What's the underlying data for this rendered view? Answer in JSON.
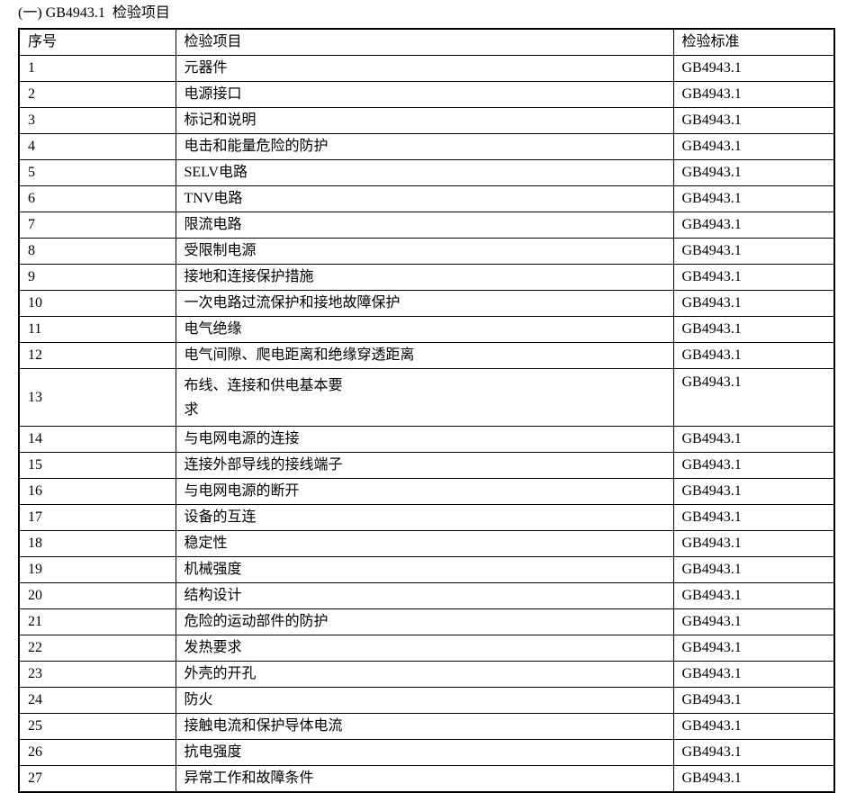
{
  "title": "(一) GB4943.1  检验项目",
  "table": {
    "headers": [
      "序号",
      "检验项目",
      "检验标准"
    ],
    "rows": [
      {
        "no": "1",
        "item": "元器件",
        "std": "GB4943.1"
      },
      {
        "no": "2",
        "item": "电源接口",
        "std": "GB4943.1"
      },
      {
        "no": "3",
        "item": "标记和说明",
        "std": "GB4943.1"
      },
      {
        "no": "4",
        "item": "电击和能量危险的防护",
        "std": "GB4943.1"
      },
      {
        "no": "5",
        "item": "SELV电路",
        "std": "GB4943.1"
      },
      {
        "no": "6",
        "item": "TNV电路",
        "std": "GB4943.1"
      },
      {
        "no": "7",
        "item": "限流电路",
        "std": "GB4943.1"
      },
      {
        "no": "8",
        "item": "受限制电源",
        "std": "GB4943.1"
      },
      {
        "no": "9",
        "item": "接地和连接保护措施",
        "std": "GB4943.1"
      },
      {
        "no": "10",
        "item": "一次电路过流保护和接地故障保护",
        "std": "GB4943.1"
      },
      {
        "no": "11",
        "item": "电气绝缘",
        "std": "GB4943.1"
      },
      {
        "no": "12",
        "item": "电气间隙、爬电距离和绝缘穿透距离",
        "std": "GB4943.1"
      },
      {
        "no": "13",
        "item": "布线、连接和供电基本要\n求",
        "std": "GB4943.1"
      },
      {
        "no": "14",
        "item": "与电网电源的连接",
        "std": "GB4943.1"
      },
      {
        "no": "15",
        "item": "连接外部导线的接线端子",
        "std": "GB4943.1"
      },
      {
        "no": "16",
        "item": "与电网电源的断开",
        "std": "GB4943.1"
      },
      {
        "no": "17",
        "item": "设备的互连",
        "std": "GB4943.1"
      },
      {
        "no": "18",
        "item": "稳定性",
        "std": "GB4943.1"
      },
      {
        "no": "19",
        "item": "机械强度",
        "std": "GB4943.1"
      },
      {
        "no": "20",
        "item": "结构设计",
        "std": "GB4943.1"
      },
      {
        "no": "21",
        "item": "危险的运动部件的防护",
        "std": "GB4943.1"
      },
      {
        "no": "22",
        "item": "发热要求",
        "std": "GB4943.1"
      },
      {
        "no": "23",
        "item": "外壳的开孔",
        "std": "GB4943.1"
      },
      {
        "no": "24",
        "item": "防火",
        "std": "GB4943.1"
      },
      {
        "no": "25",
        "item": "接触电流和保护导体电流",
        "std": "GB4943.1"
      },
      {
        "no": "26",
        "item": "抗电强度",
        "std": "GB4943.1"
      },
      {
        "no": "27",
        "item": "异常工作和故障条件",
        "std": "GB4943.1"
      }
    ]
  }
}
